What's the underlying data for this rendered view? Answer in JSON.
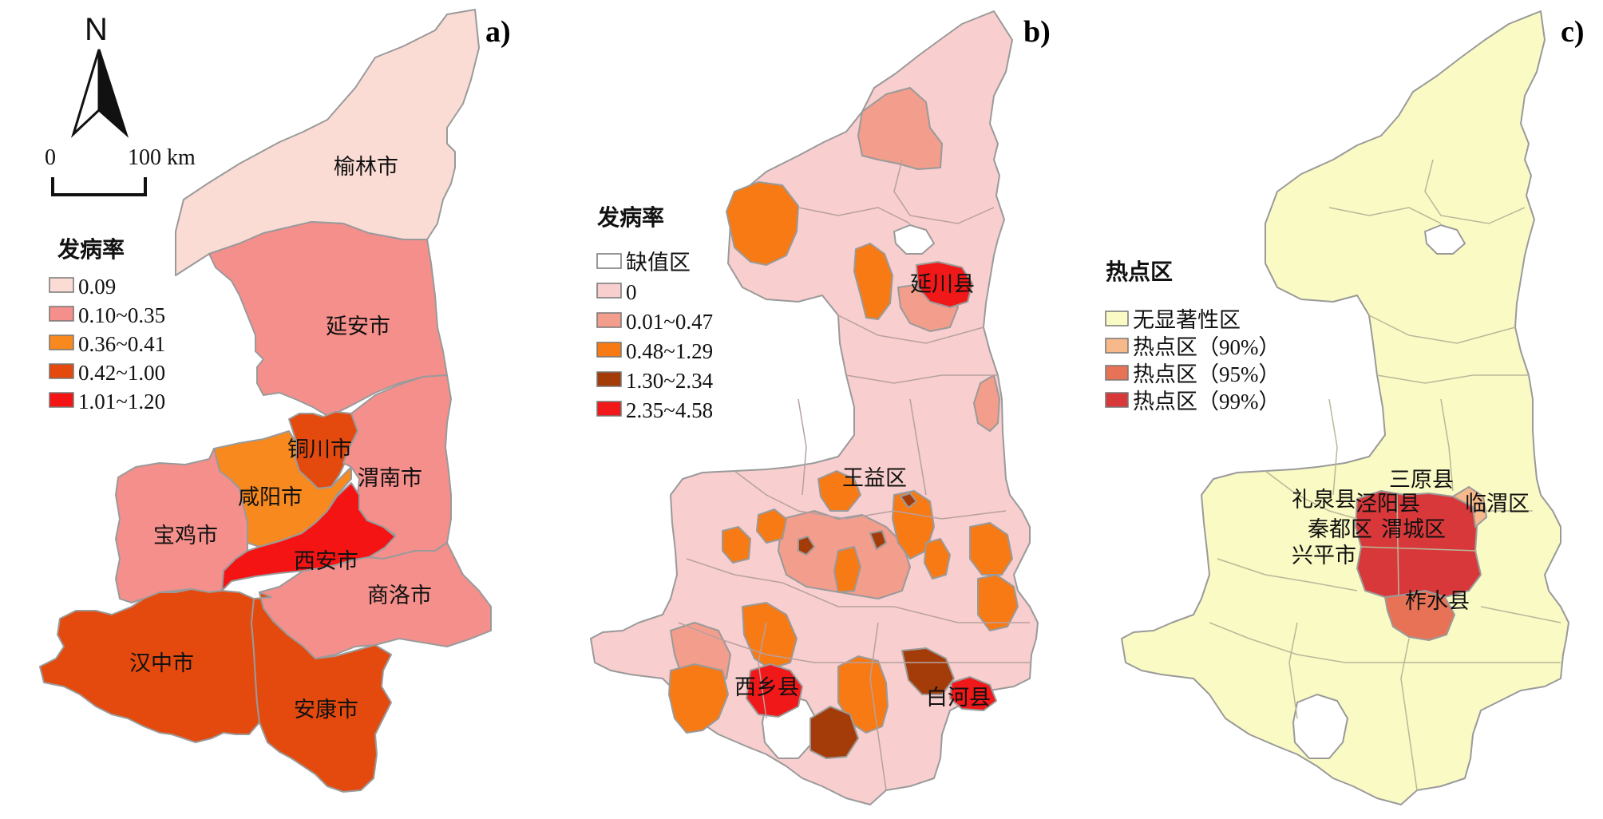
{
  "north_letter": "N",
  "scale": {
    "zero": "0",
    "distance": "100 km"
  },
  "panels": [
    {
      "label": "a)",
      "legend_title": "发病率",
      "legend": [
        {
          "text": "0.09",
          "color": "#fbdcd5"
        },
        {
          "text": "0.10~0.35",
          "color": "#f58f8c"
        },
        {
          "text": "0.36~0.41",
          "color": "#f7891e"
        },
        {
          "text": "0.42~1.00",
          "color": "#e4490d"
        },
        {
          "text": "1.01~1.20",
          "color": "#f41414"
        }
      ],
      "regions": [
        "榆林市",
        "延安市",
        "铜川市",
        "渭南市",
        "咸阳市",
        "宝鸡市",
        "西安市",
        "商洛市",
        "汉中市",
        "安康市"
      ]
    },
    {
      "label": "b)",
      "legend_title": "发病率",
      "legend": [
        {
          "text": "缺值区",
          "color": "#ffffff"
        },
        {
          "text": "0",
          "color": "#f8cece"
        },
        {
          "text": "0.01~0.47",
          "color": "#f39d8c"
        },
        {
          "text": "0.48~1.29",
          "color": "#f77a14"
        },
        {
          "text": "1.30~2.34",
          "color": "#a43c0a"
        },
        {
          "text": "2.35~4.58",
          "color": "#f01818"
        }
      ],
      "regions": [
        "延川县",
        "王益区",
        "西乡县",
        "白河县"
      ]
    },
    {
      "label": "c)",
      "legend_title": "热点区",
      "legend": [
        {
          "text": "无显著性区",
          "color": "#fafac4"
        },
        {
          "text": "热点区（90%）",
          "color": "#f7b88a"
        },
        {
          "text": "热点区（95%）",
          "color": "#e87256"
        },
        {
          "text": "热点区（99%）",
          "color": "#d9383a"
        }
      ],
      "regions": [
        "三原县",
        "礼泉县",
        "泾阳县",
        "临渭区",
        "秦都区",
        "渭城区",
        "兴平市",
        "柞水县"
      ]
    }
  ]
}
